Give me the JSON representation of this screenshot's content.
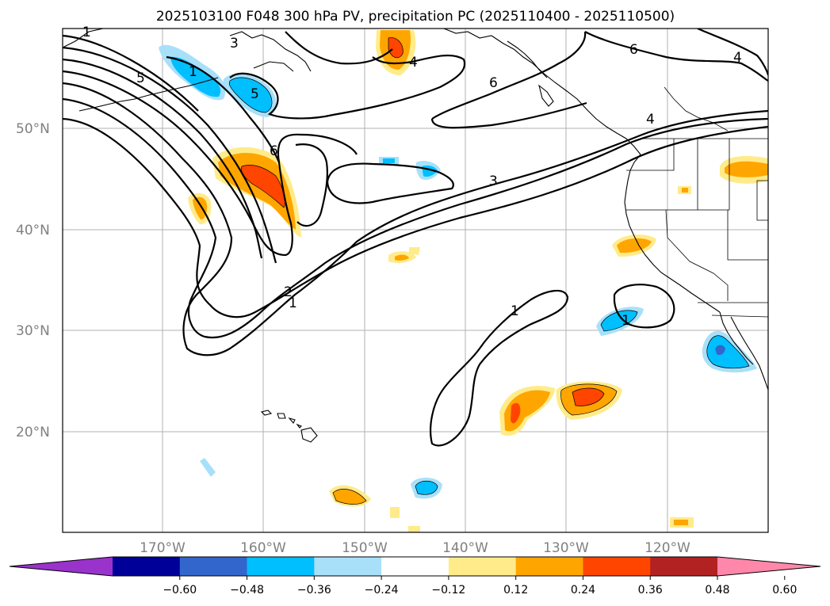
{
  "title": "2025103100 F048 300 hPa PV, precipitation PC (2025110400 - 2025110500)",
  "map": {
    "lat_labels": [
      "50°N",
      "40°N",
      "30°N",
      "20°N"
    ],
    "lon_labels": [
      "170°W",
      "160°W",
      "150°W",
      "140°W",
      "130°W",
      "120°W"
    ],
    "contour_labels": [
      "1",
      "3",
      "5",
      "5",
      "4",
      "6",
      "6",
      "4",
      "4",
      "6",
      "3",
      "2",
      "1",
      "1",
      "1",
      "1"
    ]
  },
  "colorbar": {
    "colors": [
      "#9933cc",
      "#000099",
      "#3366cc",
      "#00bfff",
      "#a8e0fa",
      "#ffffff",
      "#ffeb8a",
      "#ffa500",
      "#ff4500",
      "#b22222",
      "#ff88aa"
    ],
    "tick_labels": [
      "−0.60",
      "−0.48",
      "−0.36",
      "−0.24",
      "−0.12",
      "0.12",
      "0.24",
      "0.36",
      "0.48",
      "0.60"
    ]
  }
}
